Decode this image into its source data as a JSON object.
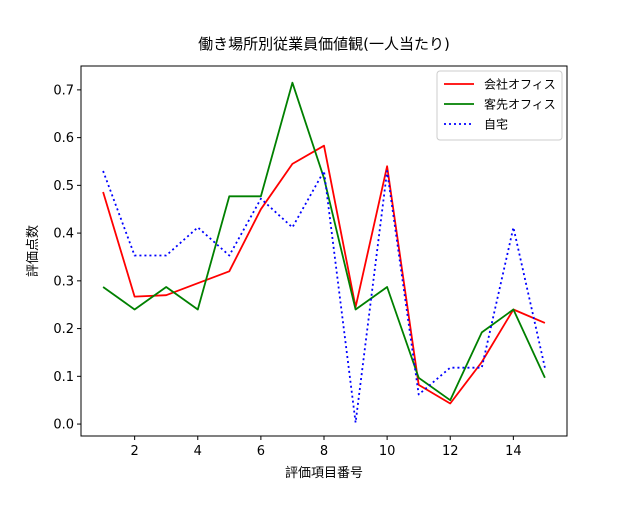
{
  "chart_data": {
    "type": "line",
    "title": "働き場所別従業員価値観(一人当たり)",
    "xlabel": "評価項目番号",
    "ylabel": "評価点数",
    "x": [
      1,
      2,
      3,
      4,
      5,
      6,
      7,
      8,
      9,
      10,
      11,
      12,
      13,
      14,
      15
    ],
    "xlim": [
      0.3,
      15.7
    ],
    "ylim": [
      -0.025,
      0.75
    ],
    "xticks": [
      2,
      4,
      6,
      8,
      10,
      12,
      14
    ],
    "yticks": [
      0.0,
      0.1,
      0.2,
      0.3,
      0.4,
      0.5,
      0.6,
      0.7
    ],
    "xtick_labels": [
      "2",
      "4",
      "6",
      "8",
      "10",
      "12",
      "14"
    ],
    "ytick_labels": [
      "0.0",
      "0.1",
      "0.2",
      "0.3",
      "0.4",
      "0.5",
      "0.6",
      "0.7"
    ],
    "grid": false,
    "legend_position": "upper right",
    "series": [
      {
        "name": "会社オフィス",
        "color": "#ff0000",
        "style": "solid",
        "values": [
          0.486,
          0.267,
          0.27,
          0.295,
          0.32,
          0.45,
          0.545,
          0.583,
          0.245,
          0.54,
          0.082,
          0.043,
          0.13,
          0.24,
          0.212
        ]
      },
      {
        "name": "客先オフィス",
        "color": "#008000",
        "style": "solid",
        "values": [
          0.287,
          0.24,
          0.287,
          0.24,
          0.477,
          0.477,
          0.715,
          0.515,
          0.24,
          0.287,
          0.097,
          0.05,
          0.192,
          0.24,
          0.097
        ]
      },
      {
        "name": "自宅",
        "color": "#0000ff",
        "style": "dotted",
        "values": [
          0.53,
          0.353,
          0.353,
          0.412,
          0.353,
          0.472,
          0.412,
          0.53,
          0.003,
          0.53,
          0.062,
          0.118,
          0.118,
          0.412,
          0.118
        ]
      }
    ]
  }
}
